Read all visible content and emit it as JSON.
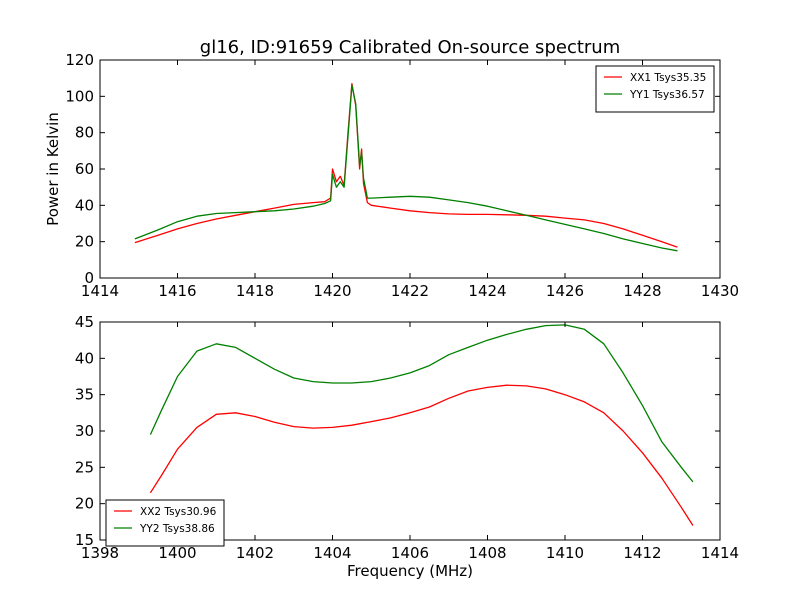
{
  "chart_data": [
    {
      "type": "line",
      "title": "gl16, ID:91659 Calibrated On-source spectrum",
      "xlabel": "",
      "ylabel": "Power in Kelvin",
      "xlim": [
        1414,
        1430
      ],
      "ylim": [
        0,
        120
      ],
      "xticks": [
        1414,
        1416,
        1418,
        1420,
        1422,
        1424,
        1426,
        1428,
        1430
      ],
      "yticks": [
        0,
        20,
        40,
        60,
        80,
        100,
        120
      ],
      "grid": false,
      "legend_position": "top-right",
      "series": [
        {
          "name": "XX1 Tsys35.35",
          "color": "#ff0000",
          "x": [
            1414.9,
            1415.5,
            1416.0,
            1416.5,
            1417.0,
            1417.5,
            1418.0,
            1418.5,
            1419.0,
            1419.5,
            1419.8,
            1419.95,
            1420.0,
            1420.1,
            1420.2,
            1420.3,
            1420.4,
            1420.5,
            1420.6,
            1420.7,
            1420.75,
            1420.8,
            1420.9,
            1421.0,
            1421.5,
            1422.0,
            1422.5,
            1423.0,
            1423.5,
            1424.0,
            1424.5,
            1425.0,
            1425.5,
            1426.0,
            1426.5,
            1427.0,
            1427.5,
            1428.0,
            1428.5,
            1428.9
          ],
          "values": [
            19.5,
            23.5,
            27.0,
            30.0,
            32.5,
            34.5,
            36.5,
            38.5,
            40.5,
            41.5,
            42.0,
            44.0,
            60.0,
            53.0,
            56.0,
            51.0,
            80.0,
            107.0,
            95.0,
            60.0,
            71.0,
            52.0,
            41.5,
            40.0,
            38.5,
            37.0,
            36.0,
            35.3,
            35.0,
            35.0,
            34.8,
            34.5,
            34.0,
            33.0,
            32.0,
            30.0,
            27.0,
            23.5,
            20.0,
            17.0
          ]
        },
        {
          "name": "YY1 Tsys36.57",
          "color": "#008000",
          "x": [
            1414.9,
            1415.5,
            1416.0,
            1416.5,
            1417.0,
            1417.5,
            1418.0,
            1418.5,
            1419.0,
            1419.5,
            1419.8,
            1419.95,
            1420.0,
            1420.1,
            1420.2,
            1420.3,
            1420.4,
            1420.5,
            1420.6,
            1420.7,
            1420.75,
            1420.8,
            1420.9,
            1421.0,
            1421.5,
            1422.0,
            1422.5,
            1423.0,
            1423.5,
            1424.0,
            1424.5,
            1425.0,
            1425.5,
            1426.0,
            1426.5,
            1427.0,
            1427.5,
            1428.0,
            1428.5,
            1428.9
          ],
          "values": [
            21.5,
            26.5,
            31.0,
            34.0,
            35.5,
            36.0,
            36.5,
            37.0,
            38.0,
            39.5,
            41.0,
            42.5,
            57.0,
            50.0,
            53.0,
            50.0,
            78.0,
            106.0,
            96.0,
            62.0,
            69.0,
            55.0,
            44.0,
            44.0,
            44.5,
            45.0,
            44.5,
            43.0,
            41.5,
            39.5,
            37.0,
            34.5,
            32.0,
            29.5,
            27.0,
            24.5,
            21.5,
            19.0,
            16.5,
            15.0
          ]
        }
      ]
    },
    {
      "type": "line",
      "title": "",
      "xlabel": "Frequency (MHz)",
      "ylabel": "",
      "xlim": [
        1398,
        1414
      ],
      "ylim": [
        15,
        45
      ],
      "xticks": [
        1398,
        1400,
        1402,
        1404,
        1406,
        1408,
        1410,
        1412,
        1414
      ],
      "yticks": [
        15,
        20,
        25,
        30,
        35,
        40,
        45
      ],
      "grid": false,
      "legend_position": "bottom-left",
      "series": [
        {
          "name": "XX2 Tsys30.96",
          "color": "#ff0000",
          "x": [
            1399.3,
            1399.6,
            1400.0,
            1400.5,
            1401.0,
            1401.5,
            1402.0,
            1402.5,
            1403.0,
            1403.5,
            1404.0,
            1404.5,
            1405.0,
            1405.5,
            1406.0,
            1406.5,
            1407.0,
            1407.5,
            1408.0,
            1408.5,
            1409.0,
            1409.5,
            1410.0,
            1410.5,
            1411.0,
            1411.5,
            1412.0,
            1412.5,
            1413.0,
            1413.3
          ],
          "values": [
            21.5,
            24.0,
            27.5,
            30.5,
            32.3,
            32.5,
            32.0,
            31.2,
            30.6,
            30.4,
            30.5,
            30.8,
            31.3,
            31.8,
            32.5,
            33.3,
            34.5,
            35.5,
            36.0,
            36.3,
            36.2,
            35.8,
            35.0,
            34.0,
            32.5,
            30.0,
            27.0,
            23.5,
            19.5,
            17.0
          ]
        },
        {
          "name": "YY2 Tsys38.86",
          "color": "#008000",
          "x": [
            1399.3,
            1399.6,
            1400.0,
            1400.5,
            1401.0,
            1401.5,
            1402.0,
            1402.5,
            1403.0,
            1403.5,
            1404.0,
            1404.5,
            1405.0,
            1405.5,
            1406.0,
            1406.5,
            1407.0,
            1407.5,
            1408.0,
            1408.5,
            1409.0,
            1409.5,
            1410.0,
            1410.5,
            1411.0,
            1411.5,
            1412.0,
            1412.5,
            1413.0,
            1413.3
          ],
          "values": [
            29.5,
            33.0,
            37.5,
            41.0,
            42.0,
            41.5,
            40.0,
            38.5,
            37.3,
            36.8,
            36.6,
            36.6,
            36.8,
            37.3,
            38.0,
            39.0,
            40.5,
            41.5,
            42.5,
            43.3,
            44.0,
            44.5,
            44.6,
            44.0,
            42.0,
            38.0,
            33.5,
            28.5,
            25.0,
            23.0
          ]
        }
      ]
    }
  ]
}
